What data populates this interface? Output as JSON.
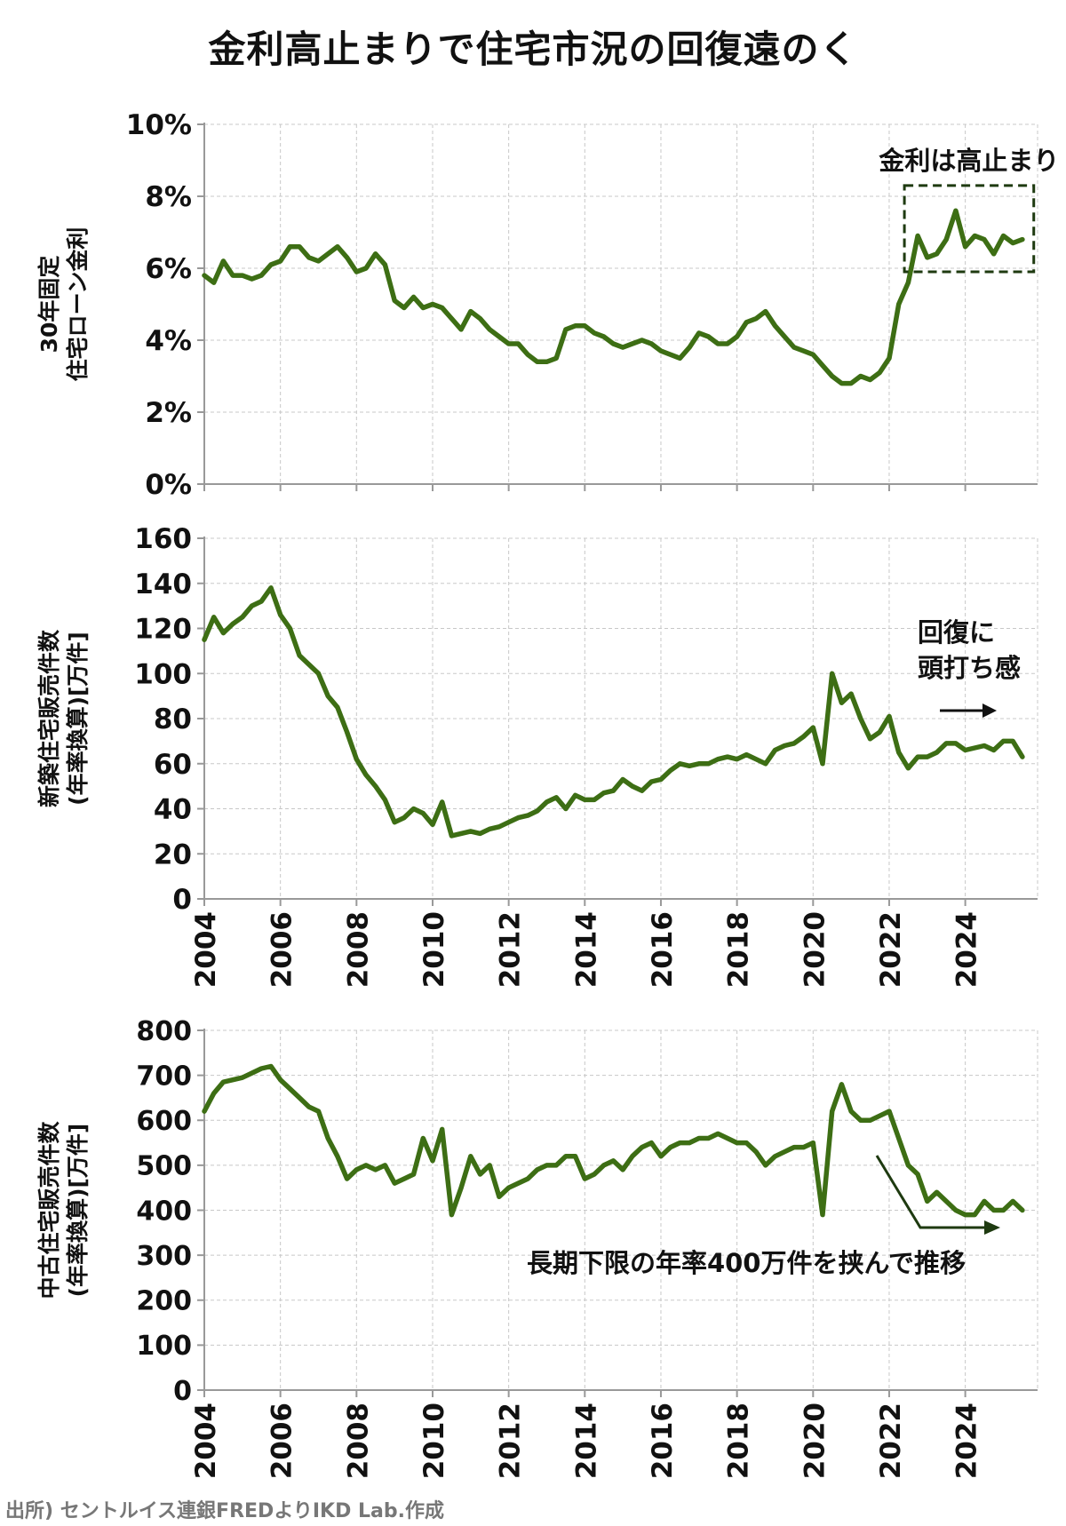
{
  "title": "金利高止まりで住宅市況の回復遠のく",
  "source": "出所) セントルイス連銀FREDよりIKD Lab.作成",
  "colors": {
    "line": "#3d6e14",
    "grid": "#c8c8c8",
    "axis": "#999999",
    "annotation": "#1e3a10"
  },
  "chart_data": [
    {
      "type": "line",
      "ylabel": [
        "30年固定",
        "住宅ローン金利"
      ],
      "ylim": [
        0,
        10
      ],
      "yticks": [
        "0%",
        "2%",
        "4%",
        "6%",
        "8%",
        "10%"
      ],
      "xlim": [
        2004,
        2025.9
      ],
      "xticks": [
        "2004",
        "2006",
        "2008",
        "2010",
        "2012",
        "2014",
        "2016",
        "2018",
        "2020",
        "2022",
        "2024"
      ],
      "show_xtick_labels": false,
      "grid": true,
      "annotation": {
        "text": "金利は高止まり",
        "box": "dashed",
        "box_range": {
          "x": [
            2022.4,
            2025.8
          ],
          "y": [
            5.9,
            8.3
          ]
        }
      },
      "series": [
        {
          "x": [
            2004.0,
            2004.25,
            2004.5,
            2004.75,
            2005.0,
            2005.25,
            2005.5,
            2005.75,
            2006.0,
            2006.25,
            2006.5,
            2006.75,
            2007.0,
            2007.25,
            2007.5,
            2007.75,
            2008.0,
            2008.25,
            2008.5,
            2008.75,
            2009.0,
            2009.25,
            2009.5,
            2009.75,
            2010.0,
            2010.25,
            2010.5,
            2010.75,
            2011.0,
            2011.25,
            2011.5,
            2011.75,
            2012.0,
            2012.25,
            2012.5,
            2012.75,
            2013.0,
            2013.25,
            2013.5,
            2013.75,
            2014.0,
            2014.25,
            2014.5,
            2014.75,
            2015.0,
            2015.25,
            2015.5,
            2015.75,
            2016.0,
            2016.25,
            2016.5,
            2016.75,
            2017.0,
            2017.25,
            2017.5,
            2017.75,
            2018.0,
            2018.25,
            2018.5,
            2018.75,
            2019.0,
            2019.25,
            2019.5,
            2019.75,
            2020.0,
            2020.25,
            2020.5,
            2020.75,
            2021.0,
            2021.25,
            2021.5,
            2021.75,
            2022.0,
            2022.25,
            2022.5,
            2022.75,
            2023.0,
            2023.25,
            2023.5,
            2023.75,
            2024.0,
            2024.25,
            2024.5,
            2024.75,
            2025.0,
            2025.25,
            2025.5
          ],
          "y": [
            5.8,
            5.6,
            6.2,
            5.8,
            5.8,
            5.7,
            5.8,
            6.1,
            6.2,
            6.6,
            6.6,
            6.3,
            6.2,
            6.4,
            6.6,
            6.3,
            5.9,
            6.0,
            6.4,
            6.1,
            5.1,
            4.9,
            5.2,
            4.9,
            5.0,
            4.9,
            4.6,
            4.3,
            4.8,
            4.6,
            4.3,
            4.1,
            3.9,
            3.9,
            3.6,
            3.4,
            3.4,
            3.5,
            4.3,
            4.4,
            4.4,
            4.2,
            4.1,
            3.9,
            3.8,
            3.9,
            4.0,
            3.9,
            3.7,
            3.6,
            3.5,
            3.8,
            4.2,
            4.1,
            3.9,
            3.9,
            4.1,
            4.5,
            4.6,
            4.8,
            4.4,
            4.1,
            3.8,
            3.7,
            3.6,
            3.3,
            3.0,
            2.8,
            2.8,
            3.0,
            2.9,
            3.1,
            3.5,
            5.0,
            5.6,
            6.9,
            6.3,
            6.4,
            6.8,
            7.6,
            6.6,
            6.9,
            6.8,
            6.4,
            6.9,
            6.7,
            6.8
          ]
        }
      ]
    },
    {
      "type": "line",
      "ylabel": [
        "新築住宅販売件数",
        "(年率換算)[万件]"
      ],
      "ylim": [
        0,
        160
      ],
      "yticks": [
        "0",
        "20",
        "40",
        "60",
        "80",
        "100",
        "120",
        "140",
        "160"
      ],
      "xlim": [
        2004,
        2025.9
      ],
      "xticks": [
        "2004",
        "2006",
        "2008",
        "2010",
        "2012",
        "2014",
        "2016",
        "2018",
        "2020",
        "2022",
        "2024"
      ],
      "show_xtick_labels": true,
      "grid": true,
      "annotation": {
        "text": [
          "回復に",
          "頭打ち感"
        ],
        "arrow": "right"
      },
      "series": [
        {
          "x": [
            2004.0,
            2004.25,
            2004.5,
            2004.75,
            2005.0,
            2005.25,
            2005.5,
            2005.75,
            2006.0,
            2006.25,
            2006.5,
            2006.75,
            2007.0,
            2007.25,
            2007.5,
            2007.75,
            2008.0,
            2008.25,
            2008.5,
            2008.75,
            2009.0,
            2009.25,
            2009.5,
            2009.75,
            2010.0,
            2010.25,
            2010.5,
            2010.75,
            2011.0,
            2011.25,
            2011.5,
            2011.75,
            2012.0,
            2012.25,
            2012.5,
            2012.75,
            2013.0,
            2013.25,
            2013.5,
            2013.75,
            2014.0,
            2014.25,
            2014.5,
            2014.75,
            2015.0,
            2015.25,
            2015.5,
            2015.75,
            2016.0,
            2016.25,
            2016.5,
            2016.75,
            2017.0,
            2017.25,
            2017.5,
            2017.75,
            2018.0,
            2018.25,
            2018.5,
            2018.75,
            2019.0,
            2019.25,
            2019.5,
            2019.75,
            2020.0,
            2020.25,
            2020.5,
            2020.75,
            2021.0,
            2021.25,
            2021.5,
            2021.75,
            2022.0,
            2022.25,
            2022.5,
            2022.75,
            2023.0,
            2023.25,
            2023.5,
            2023.75,
            2024.0,
            2024.25,
            2024.5,
            2024.75,
            2025.0,
            2025.25,
            2025.5
          ],
          "y": [
            115,
            125,
            118,
            122,
            125,
            130,
            132,
            138,
            126,
            120,
            108,
            104,
            100,
            90,
            85,
            74,
            62,
            55,
            50,
            44,
            34,
            36,
            40,
            38,
            33,
            43,
            28,
            29,
            30,
            29,
            31,
            32,
            34,
            36,
            37,
            39,
            43,
            45,
            40,
            46,
            44,
            44,
            47,
            48,
            53,
            50,
            48,
            52,
            53,
            57,
            60,
            59,
            60,
            60,
            62,
            63,
            62,
            64,
            62,
            60,
            66,
            68,
            69,
            72,
            76,
            60,
            100,
            87,
            91,
            80,
            71,
            74,
            81,
            65,
            58,
            63,
            63,
            65,
            69,
            69,
            66,
            67,
            68,
            66,
            70,
            70,
            63
          ]
        }
      ]
    },
    {
      "type": "line",
      "ylabel": [
        "中古住宅販売件数",
        "(年率換算)[万件]"
      ],
      "ylim": [
        0,
        800
      ],
      "yticks": [
        "0",
        "100",
        "200",
        "300",
        "400",
        "500",
        "600",
        "700",
        "800"
      ],
      "xlim": [
        2004,
        2025.9
      ],
      "xticks": [
        "2004",
        "2006",
        "2008",
        "2010",
        "2012",
        "2014",
        "2016",
        "2018",
        "2020",
        "2022",
        "2024"
      ],
      "show_xtick_labels": true,
      "grid": true,
      "annotation": {
        "text": "長期下限の年率400万件を挟んで推移",
        "arrow": "down-right"
      },
      "series": [
        {
          "x": [
            2004.0,
            2004.25,
            2004.5,
            2004.75,
            2005.0,
            2005.25,
            2005.5,
            2005.75,
            2006.0,
            2006.25,
            2006.5,
            2006.75,
            2007.0,
            2007.25,
            2007.5,
            2007.75,
            2008.0,
            2008.25,
            2008.5,
            2008.75,
            2009.0,
            2009.25,
            2009.5,
            2009.75,
            2010.0,
            2010.25,
            2010.5,
            2010.75,
            2011.0,
            2011.25,
            2011.5,
            2011.75,
            2012.0,
            2012.25,
            2012.5,
            2012.75,
            2013.0,
            2013.25,
            2013.5,
            2013.75,
            2014.0,
            2014.25,
            2014.5,
            2014.75,
            2015.0,
            2015.25,
            2015.5,
            2015.75,
            2016.0,
            2016.25,
            2016.5,
            2016.75,
            2017.0,
            2017.25,
            2017.5,
            2017.75,
            2018.0,
            2018.25,
            2018.5,
            2018.75,
            2019.0,
            2019.25,
            2019.5,
            2019.75,
            2020.0,
            2020.25,
            2020.5,
            2020.75,
            2021.0,
            2021.25,
            2021.5,
            2021.75,
            2022.0,
            2022.25,
            2022.5,
            2022.75,
            2023.0,
            2023.25,
            2023.5,
            2023.75,
            2024.0,
            2024.25,
            2024.5,
            2024.75,
            2025.0,
            2025.25,
            2025.5
          ],
          "y": [
            620,
            660,
            685,
            690,
            695,
            705,
            715,
            720,
            690,
            670,
            650,
            630,
            620,
            560,
            520,
            470,
            490,
            500,
            490,
            500,
            460,
            470,
            480,
            560,
            510,
            580,
            390,
            450,
            520,
            480,
            500,
            430,
            450,
            460,
            470,
            490,
            500,
            500,
            520,
            520,
            470,
            480,
            500,
            510,
            490,
            520,
            540,
            550,
            520,
            540,
            550,
            550,
            560,
            560,
            570,
            560,
            550,
            550,
            530,
            500,
            520,
            530,
            540,
            540,
            550,
            390,
            620,
            680,
            620,
            600,
            600,
            610,
            620,
            560,
            500,
            480,
            420,
            440,
            420,
            400,
            390,
            390,
            420,
            400,
            400,
            420,
            400
          ]
        }
      ]
    }
  ]
}
